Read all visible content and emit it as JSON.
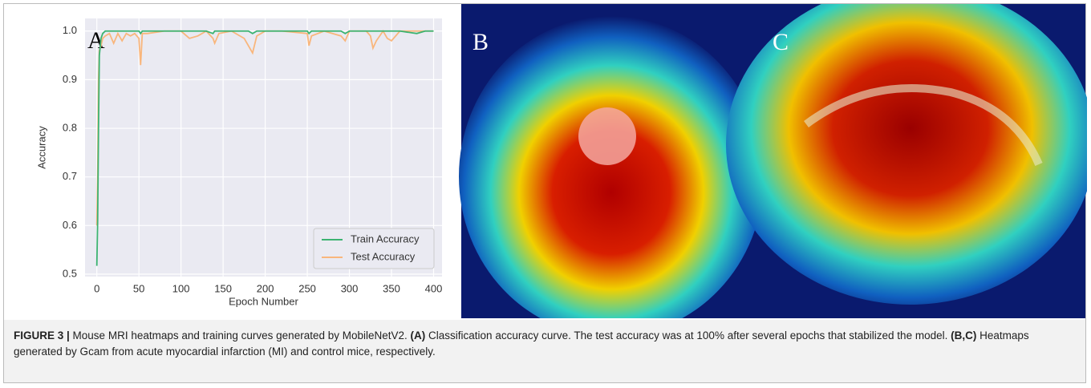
{
  "chart_data": {
    "type": "line",
    "panel_label": "A",
    "xlabel": "Epoch Number",
    "ylabel": "Accuracy",
    "x": [
      0,
      1,
      2,
      3,
      5,
      7,
      10,
      15,
      20,
      25,
      30,
      35,
      40,
      45,
      50,
      52,
      54,
      60,
      80,
      100,
      110,
      120,
      130,
      138,
      140,
      145,
      160,
      175,
      180,
      185,
      190,
      200,
      220,
      250,
      252,
      255,
      270,
      290,
      295,
      300,
      320,
      325,
      328,
      332,
      340,
      345,
      350,
      360,
      380,
      390,
      400
    ],
    "series": [
      {
        "name": "Train Accuracy",
        "color": "#3cb371",
        "values": [
          0.517,
          0.61,
          0.8,
          0.95,
          0.985,
          0.995,
          1.0,
          1.0,
          1.0,
          1.0,
          1.0,
          1.0,
          1.0,
          1.0,
          1.0,
          0.995,
          1.0,
          1.0,
          1.0,
          1.0,
          1.0,
          1.0,
          1.0,
          0.995,
          1.0,
          1.0,
          1.0,
          1.0,
          1.0,
          0.995,
          1.0,
          1.0,
          1.0,
          1.0,
          0.995,
          1.0,
          1.0,
          1.0,
          0.995,
          1.0,
          1.0,
          1.0,
          1.0,
          1.0,
          1.0,
          1.0,
          1.0,
          1.0,
          0.995,
          1.0,
          1.0
        ]
      },
      {
        "name": "Test Accuracy",
        "color": "#f9b67c",
        "values": [
          0.6,
          0.7,
          0.9,
          0.96,
          0.97,
          0.985,
          0.99,
          0.995,
          0.975,
          0.995,
          0.98,
          0.995,
          0.99,
          0.995,
          0.985,
          0.93,
          0.995,
          0.995,
          1.0,
          1.0,
          0.985,
          0.99,
          1.0,
          0.985,
          0.975,
          0.995,
          1.0,
          0.985,
          0.97,
          0.955,
          0.99,
          1.0,
          1.0,
          0.995,
          0.97,
          0.99,
          1.0,
          0.99,
          0.98,
          1.0,
          1.0,
          0.99,
          0.965,
          0.98,
          1.0,
          0.985,
          0.98,
          1.0,
          1.0,
          1.0,
          1.0
        ]
      }
    ],
    "xlim": [
      -14,
      410
    ],
    "ylim": [
      0.495,
      1.026
    ],
    "xticks": [
      0,
      50,
      100,
      150,
      200,
      250,
      300,
      350,
      400
    ],
    "yticks": [
      0.5,
      0.6,
      0.7,
      0.8,
      0.9,
      {
        "value": 1,
        "label": "1.0"
      }
    ],
    "grid": true,
    "legend": "lower-right"
  },
  "panels": [
    {
      "label": "B"
    },
    {
      "label": "C"
    }
  ],
  "caption": {
    "figure": "FIGURE 3 |",
    "intro": " Mouse MRI heatmaps and training curves generated by MobileNetV2. ",
    "a_label": "(A)",
    "a_text": " Classification accuracy curve. The test accuracy was at 100% after several epochs that stabilized the model. ",
    "bc_label": "(B,C)",
    "bc_text": " Heatmaps generated by Gcam from acute myocardial infarction (MI) and control mice, respectively."
  }
}
